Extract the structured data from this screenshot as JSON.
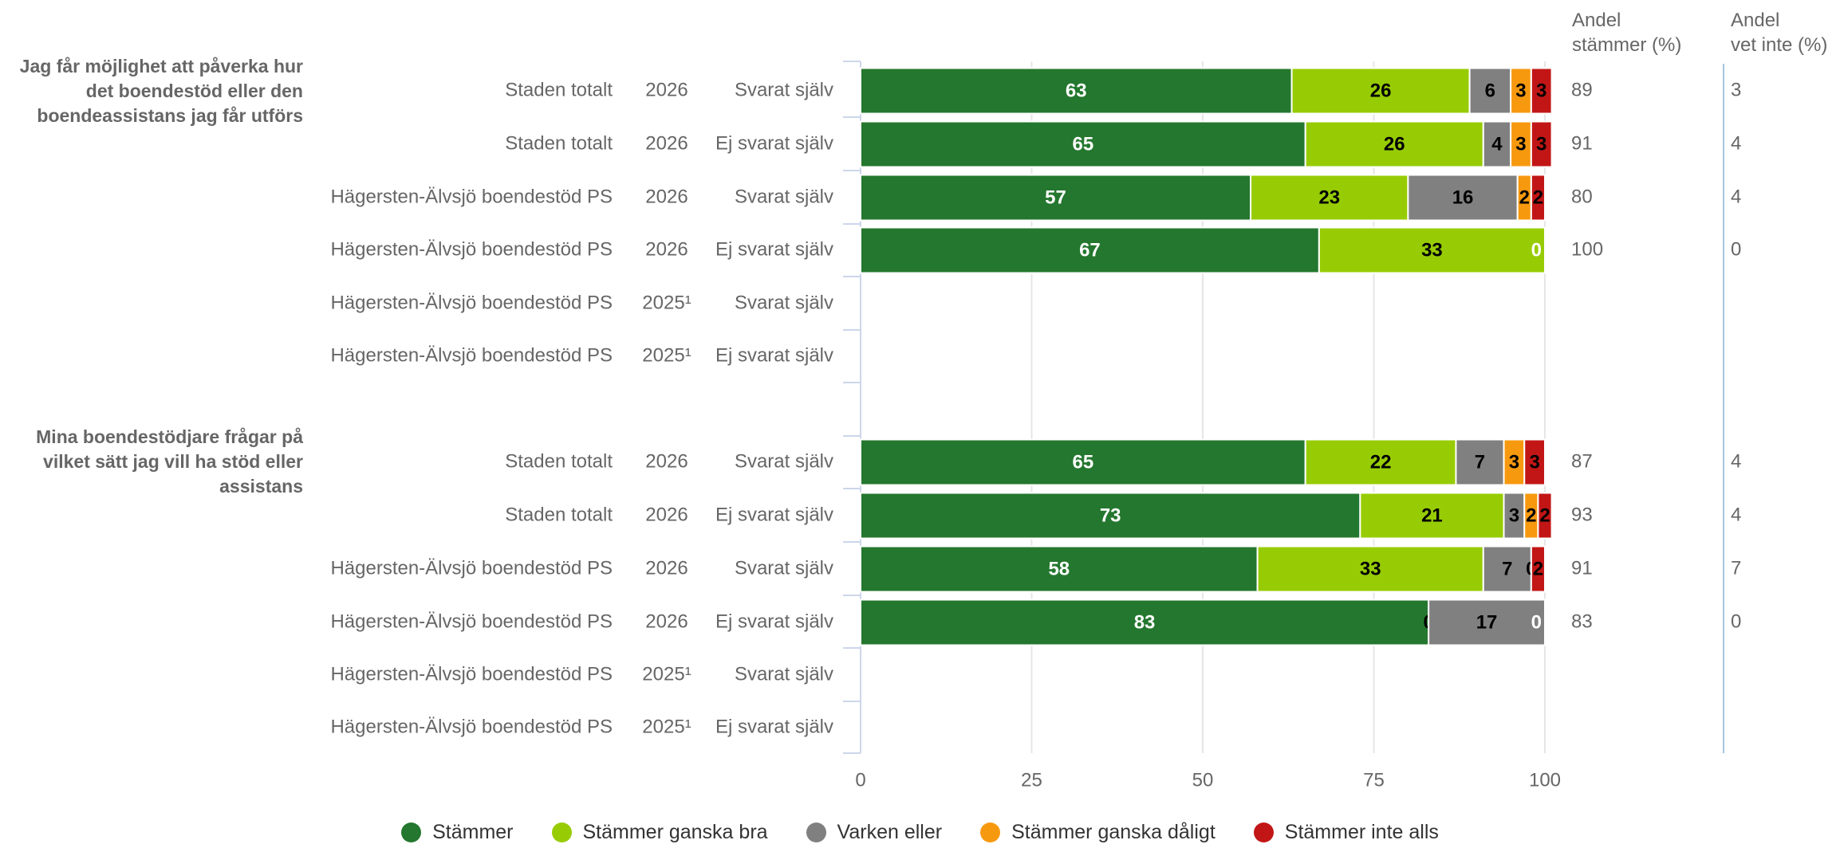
{
  "headers": {
    "share_agree": [
      "Andel",
      "stämmer (%)"
    ],
    "share_dont_know": [
      "Andel",
      "vet inte (%)"
    ]
  },
  "chart_data": {
    "type": "bar",
    "orientation": "horizontal",
    "stacked": true,
    "xlim": [
      0,
      100
    ],
    "xticks": [
      0,
      25,
      50,
      75,
      100
    ],
    "grid": true,
    "legend_position": "bottom",
    "series": [
      {
        "name": "Stämmer",
        "color": "#24772e"
      },
      {
        "name": "Stämmer ganska bra",
        "color": "#97cc04"
      },
      {
        "name": "Varken eller",
        "color": "#808080"
      },
      {
        "name": "Stämmer ganska dåligt",
        "color": "#f7990f"
      },
      {
        "name": "Stämmer inte alls",
        "color": "#c21616"
      }
    ],
    "groups": [
      {
        "title": "Jag får möjlighet att påverka hur det boendestöd eller den boendeassistans jag får utförs",
        "rows": [
          {
            "unit": "Staden totalt",
            "year": "2026",
            "respondent": "Svarat själv",
            "values": [
              63,
              26,
              6,
              3,
              3
            ],
            "share_agree": "89",
            "share_dont_know": "3"
          },
          {
            "unit": "Staden totalt",
            "year": "2026",
            "respondent": "Ej svarat själv",
            "values": [
              65,
              26,
              4,
              3,
              3
            ],
            "share_agree": "91",
            "share_dont_know": "4"
          },
          {
            "unit": "Hägersten-Älvsjö boendestöd PS",
            "year": "2026",
            "respondent": "Svarat själv",
            "values": [
              57,
              23,
              16,
              2,
              2
            ],
            "share_agree": "80",
            "share_dont_know": "4"
          },
          {
            "unit": "Hägersten-Älvsjö boendestöd PS",
            "year": "2026",
            "respondent": "Ej svarat själv",
            "values": [
              67,
              33,
              0,
              0,
              0
            ],
            "labels": [
              "67",
              "33",
              "0",
              "",
              ""
            ],
            "share_agree": "100",
            "share_dont_know": "0"
          },
          {
            "unit": "Hägersten-Älvsjö boendestöd PS",
            "year": "2025¹",
            "respondent": "Svarat själv",
            "values": null,
            "share_agree": "",
            "share_dont_know": ""
          },
          {
            "unit": "Hägersten-Älvsjö boendestöd PS",
            "year": "2025¹",
            "respondent": "Ej svarat själv",
            "values": null,
            "share_agree": "",
            "share_dont_know": ""
          }
        ]
      },
      {
        "title": "Mina boendestödjare frågar på vilket sätt jag vill ha stöd eller assistans",
        "rows": [
          {
            "unit": "Staden totalt",
            "year": "2026",
            "respondent": "Svarat själv",
            "values": [
              65,
              22,
              7,
              3,
              3
            ],
            "share_agree": "87",
            "share_dont_know": "4"
          },
          {
            "unit": "Staden totalt",
            "year": "2026",
            "respondent": "Ej svarat själv",
            "values": [
              73,
              21,
              3,
              2,
              2
            ],
            "share_agree": "93",
            "share_dont_know": "4"
          },
          {
            "unit": "Hägersten-Älvsjö boendestöd PS",
            "year": "2026",
            "respondent": "Svarat själv",
            "values": [
              58,
              33,
              7,
              0,
              2
            ],
            "share_agree": "91",
            "share_dont_know": "7"
          },
          {
            "unit": "Hägersten-Älvsjö boendestöd PS",
            "year": "2026",
            "respondent": "Ej svarat själv",
            "values": [
              83,
              0,
              17,
              0,
              0
            ],
            "labels": [
              "83",
              "0",
              "17",
              "0",
              ""
            ],
            "share_agree": "83",
            "share_dont_know": "0"
          },
          {
            "unit": "Hägersten-Älvsjö boendestöd PS",
            "year": "2025¹",
            "respondent": "Svarat själv",
            "values": null,
            "share_agree": "",
            "share_dont_know": ""
          },
          {
            "unit": "Hägersten-Älvsjö boendestöd PS",
            "year": "2025¹",
            "respondent": "Ej svarat själv",
            "values": null,
            "share_agree": "",
            "share_dont_know": ""
          }
        ]
      }
    ]
  }
}
